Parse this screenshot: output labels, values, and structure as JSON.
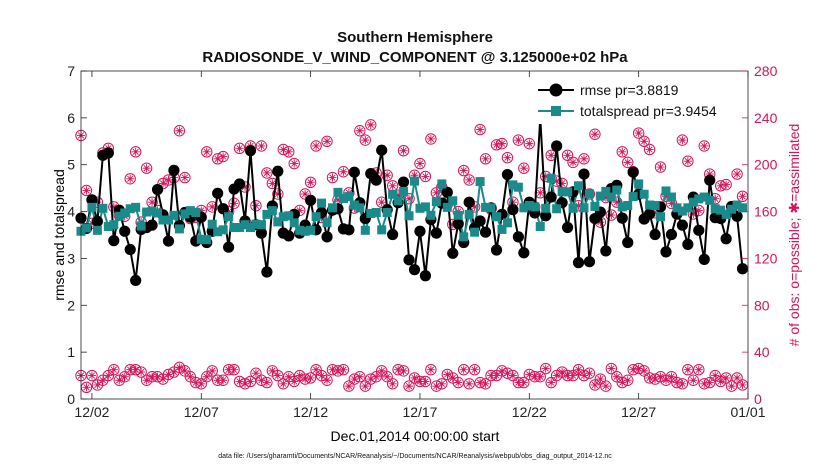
{
  "chart_data": {
    "type": "line",
    "title": "Southern Hemisphere",
    "subtitle": "RADIOSONDE_V_WIND_COMPONENT @ 3.125000e+02 hPa",
    "xlabel": "Dec.01,2014 00:00:00 start",
    "ylabel_left": "rmse and totalspread",
    "ylabel_right": "# of obs: o=possible; ✱=assimilated",
    "footnote": "data file: /Users/gharamti/Documents/NCAR/Reanalysis/~/Documents/NCAR/Reanalysis/webpub/obs_diag_output_2014-12.nc",
    "xlim": [
      0.5,
      31.0
    ],
    "ylim_left": [
      0,
      7
    ],
    "ylim_right": [
      0,
      280
    ],
    "x_ticks": [
      1,
      6,
      11,
      16,
      21,
      26,
      31
    ],
    "x_tick_labels": [
      "12/02",
      "12/07",
      "12/12",
      "12/17",
      "12/22",
      "12/27",
      "01/01"
    ],
    "y_ticks_left": [
      0,
      1,
      2,
      3,
      4,
      5,
      6,
      7
    ],
    "y_ticks_right": [
      0,
      40,
      80,
      120,
      160,
      200,
      240,
      280
    ],
    "colors": {
      "rmse": "#000000",
      "spread": "#1a8a8a",
      "obs": "#d4145a"
    },
    "series": [
      {
        "name": "rmse",
        "legend": "rmse pr=3.8819"
      },
      {
        "name": "totalspread",
        "legend": "totalspread pr=3.9454"
      },
      {
        "name": "obs_possible"
      },
      {
        "name": "obs_assimilated"
      }
    ],
    "n_points": 122,
    "x_start": 0.5,
    "x_step": 0.25,
    "rmse": [
      3.86,
      3.64,
      4.25,
      3.79,
      5.2,
      5.25,
      3.38,
      4.03,
      3.58,
      3.19,
      2.53,
      3.62,
      3.66,
      3.71,
      4.47,
      3.93,
      3.37,
      4.88,
      3.7,
      3.98,
      3.88,
      3.37,
      3.88,
      3.34,
      3.58,
      4.39,
      4.06,
      3.24,
      4.48,
      4.59,
      3.8,
      5.3,
      3.72,
      3.54,
      2.71,
      4.12,
      4.86,
      3.54,
      3.48,
      3.94,
      3.54,
      3.71,
      4.24,
      3.61,
      3.98,
      3.46,
      4.03,
      4.06,
      3.63,
      3.61,
      4.84,
      4.19,
      3.85,
      4.81,
      4.67,
      5.31,
      4.04,
      3.51,
      4.19,
      4.63,
      2.97,
      2.76,
      3.58,
      2.63,
      3.83,
      3.54,
      4.18,
      4.41,
      3.11,
      3.74,
      3.34,
      4.2,
      3.65,
      3.8,
      3.56,
      4.08,
      3.18,
      3.94,
      4.79,
      4.04,
      3.46,
      3.12,
      4.2,
      3.97,
      6.0,
      3.91,
      4.31,
      5.4,
      4.19,
      3.66,
      4.42,
      2.91,
      4.8,
      2.93,
      3.85,
      3.99,
      3.16,
      4.49,
      4.56,
      3.86,
      3.34,
      4.84,
      4.37,
      3.84,
      3.95,
      3.51,
      4.1,
      3.14,
      3.51,
      3.95,
      3.71,
      3.3,
      4.31,
      3.6,
      2.98,
      4.67,
      3.87,
      3.85,
      3.42,
      4.11,
      3.9,
      2.78
    ],
    "totalspread": [
      3.58,
      3.65,
      4.09,
      3.6,
      4.07,
      3.68,
      3.72,
      3.9,
      3.97,
      4.06,
      4.09,
      3.69,
      3.99,
      4.01,
      3.97,
      3.82,
      3.82,
      3.92,
      3.63,
      3.95,
      4.02,
      3.98,
      3.41,
      3.4,
      3.73,
      3.57,
      3.61,
      3.89,
      3.66,
      3.66,
      3.72,
      3.66,
      3.73,
      3.72,
      3.94,
      4.02,
      3.78,
      3.89,
      3.91,
      3.76,
      3.6,
      3.58,
      3.6,
      3.89,
      4.18,
      3.76,
      4.08,
      4.41,
      4.28,
      4.32,
      4.14,
      4.08,
      3.6,
      3.96,
      3.98,
      3.61,
      3.98,
      4.37,
      4.23,
      4.43,
      3.91,
      4.65,
      4.07,
      4.1,
      3.92,
      4.21,
      4.59,
      4.09,
      4.23,
      3.92,
      3.46,
      3.94,
      3.56,
      4.64,
      4.09,
      4.08,
      3.89,
      3.62,
      3.76,
      4.57,
      4.52,
      4.08,
      4.13,
      4.1,
      3.68,
      4.07,
      4.71,
      4.06,
      4.43,
      4.42,
      4.07,
      4.55,
      4.08,
      4.38,
      4.11,
      4.33,
      4.43,
      4.31,
      4.46,
      4.1,
      4.13,
      4.32,
      4.59,
      4.37,
      4.14,
      4.13,
      3.89,
      4.44,
      4.31,
      4.08,
      4.01,
      4.08,
      4.2,
      4.27,
      4.31,
      4.24,
      4.06,
      4.03,
      3.94,
      4.05,
      4.14,
      4.08
    ],
    "obs_possible": [
      225,
      178,
      150,
      168,
      210,
      214,
      164,
      157,
      156,
      188,
      211,
      151,
      197,
      168,
      161,
      184,
      187,
      189,
      229,
      189,
      154,
      155,
      161,
      211,
      164,
      205,
      207,
      160,
      167,
      214,
      181,
      216,
      165,
      216,
      193,
      184,
      175,
      213,
      211,
      201,
      161,
      175,
      185,
      216,
      155,
      220,
      189,
      170,
      194,
      176,
      163,
      229,
      221,
      234,
      193,
      168,
      191,
      182,
      174,
      212,
      171,
      191,
      201,
      190,
      222,
      176,
      181,
      166,
      149,
      160,
      195,
      187,
      164,
      230,
      205,
      162,
      217,
      218,
      206,
      168,
      221,
      197,
      218,
      164,
      176,
      190,
      208,
      186,
      184,
      208,
      202,
      165,
      205,
      175,
      226,
      151,
      172,
      157,
      168,
      211,
      202,
      194,
      227,
      220,
      213,
      159,
      198,
      173,
      167,
      158,
      221,
      203,
      158,
      161,
      216,
      192,
      171,
      182,
      183,
      160,
      192,
      173
    ],
    "obs_assimilated": [
      20,
      10,
      20,
      12,
      16,
      20,
      25,
      16,
      19,
      25,
      25,
      23,
      16,
      19,
      19,
      17,
      21,
      23,
      27,
      24,
      19,
      14,
      13,
      19,
      24,
      16,
      16,
      25,
      25,
      15,
      13,
      15,
      22,
      16,
      14,
      24,
      20,
      13,
      19,
      15,
      20,
      17,
      18,
      25,
      20,
      16,
      25,
      24,
      25,
      11,
      17,
      19,
      11,
      17,
      19,
      24,
      19,
      13,
      25,
      24,
      11,
      18,
      15,
      15,
      25,
      11,
      13,
      21,
      18,
      14,
      25,
      13,
      25,
      14,
      13,
      20,
      20,
      24,
      22,
      20,
      14,
      14,
      21,
      19,
      19,
      26,
      14,
      20,
      23,
      20,
      20,
      25,
      20,
      22,
      12,
      17,
      11,
      26,
      19,
      14,
      16,
      25,
      26,
      24,
      18,
      17,
      19,
      16,
      19,
      14,
      13,
      25,
      16,
      25,
      13,
      14,
      20,
      15,
      18,
      11,
      18,
      12
    ]
  }
}
